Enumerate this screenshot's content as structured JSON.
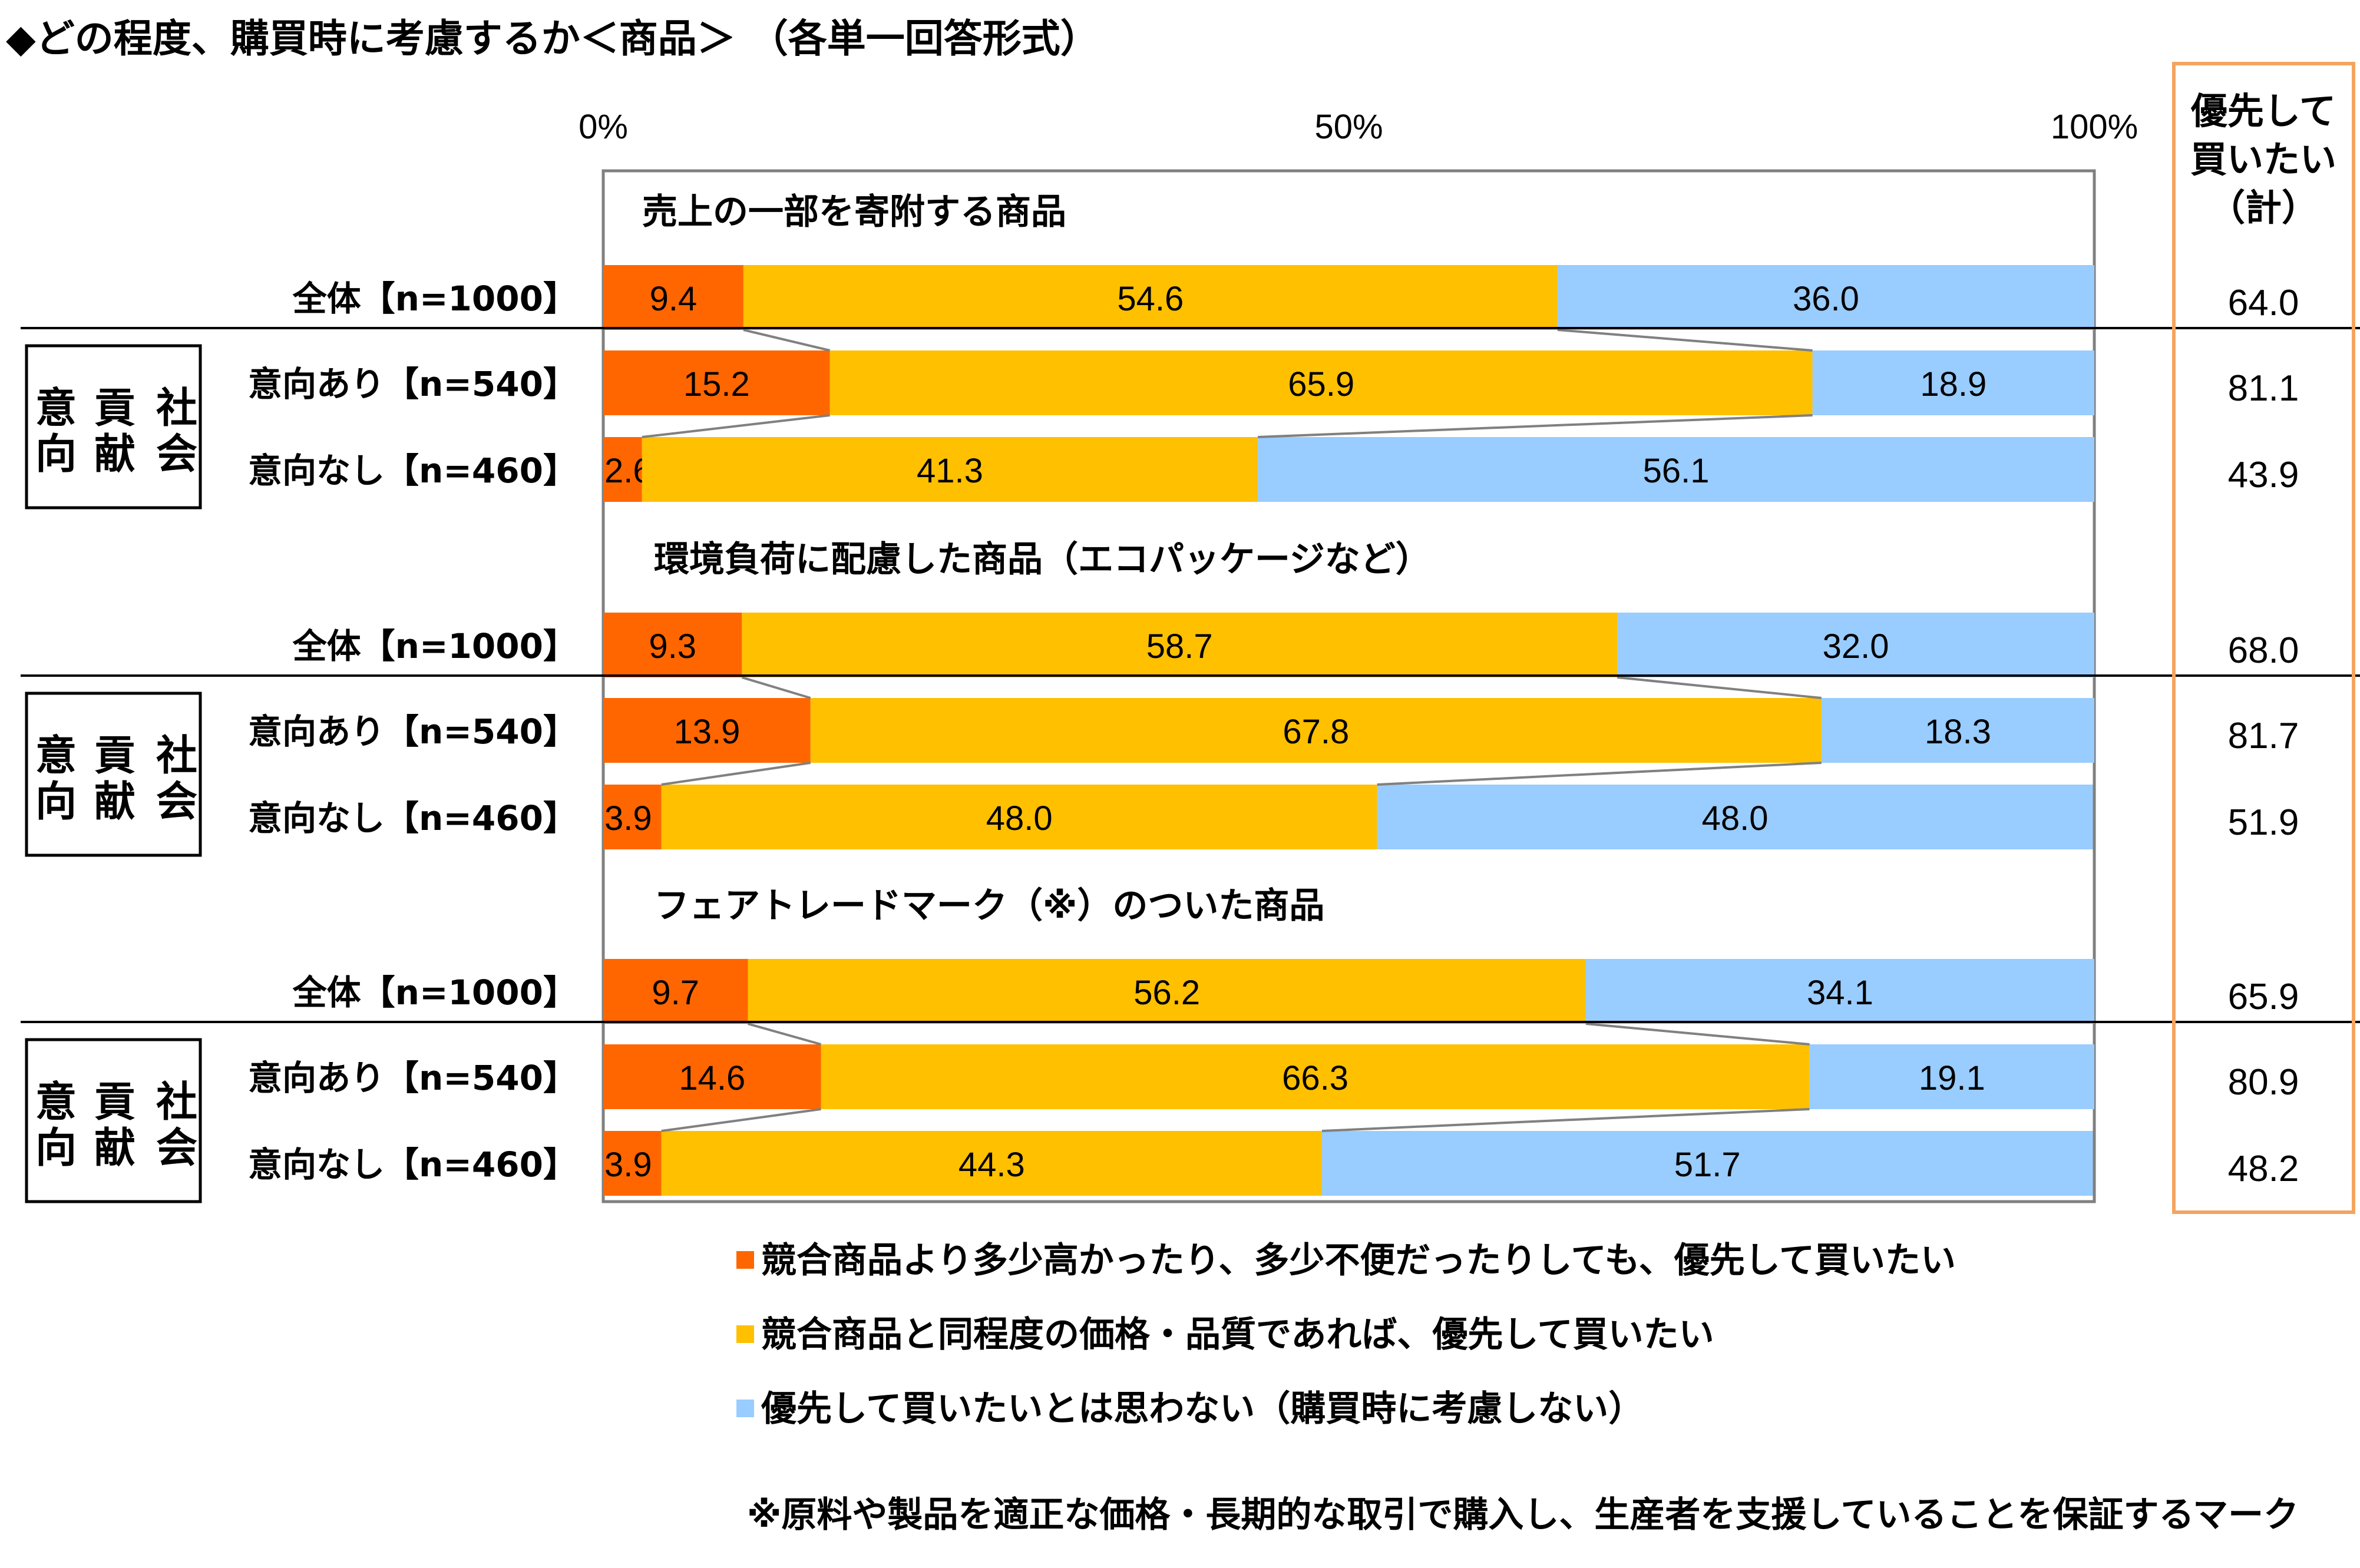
{
  "title": "◆どの程度、購買時に考慮するか＜商品＞ （各単一回答形式）",
  "total_header": "優先して\n買いたい\n（計）",
  "group_label": "社会貢献意向",
  "colors": {
    "series1": "#ff6600",
    "series2": "#ffc000",
    "series3": "#99ccff",
    "total_box": "#f4a460"
  },
  "chart_data": {
    "type": "bar",
    "orientation": "horizontal",
    "stacked": true,
    "xlim": [
      0,
      100
    ],
    "x_ticks": [
      "0%",
      "50%",
      "100%"
    ],
    "series": [
      {
        "name": "競合商品より多少高かったり、多少不便だったりしても、優先して買いたい"
      },
      {
        "name": "競合商品と同程度の価格・品質であれば、優先して買いたい"
      },
      {
        "name": "優先して買いたいとは思わない（購買時に考慮しない）"
      }
    ],
    "sections": [
      {
        "title": "売上の一部を寄附する商品",
        "rows": [
          {
            "label": "全体【n=1000】",
            "values": [
              9.4,
              54.6,
              36.0
            ],
            "total": "64.0"
          },
          {
            "label": "意向あり【n=540】",
            "values": [
              15.2,
              65.9,
              18.9
            ],
            "total": "81.1"
          },
          {
            "label": "意向なし【n=460】",
            "values": [
              2.6,
              41.3,
              56.1
            ],
            "total": "43.9"
          }
        ]
      },
      {
        "title": "環境負荷に配慮した商品（エコパッケージなど）",
        "rows": [
          {
            "label": "全体【n=1000】",
            "values": [
              9.3,
              58.7,
              32.0
            ],
            "total": "68.0"
          },
          {
            "label": "意向あり【n=540】",
            "values": [
              13.9,
              67.8,
              18.3
            ],
            "total": "81.7"
          },
          {
            "label": "意向なし【n=460】",
            "values": [
              3.9,
              48.0,
              48.0
            ],
            "total": "51.9"
          }
        ]
      },
      {
        "title": "フェアトレードマーク（※）のついた商品",
        "rows": [
          {
            "label": "全体【n=1000】",
            "values": [
              9.7,
              56.2,
              34.1
            ],
            "total": "65.9"
          },
          {
            "label": "意向あり【n=540】",
            "values": [
              14.6,
              66.3,
              19.1
            ],
            "total": "80.9"
          },
          {
            "label": "意向なし【n=460】",
            "values": [
              3.9,
              44.3,
              51.7
            ],
            "total": "48.2"
          }
        ]
      }
    ]
  },
  "footnote": "※原料や製品を適正な価格・長期的な取引で購入し、生産者を支援していることを保証するマーク"
}
